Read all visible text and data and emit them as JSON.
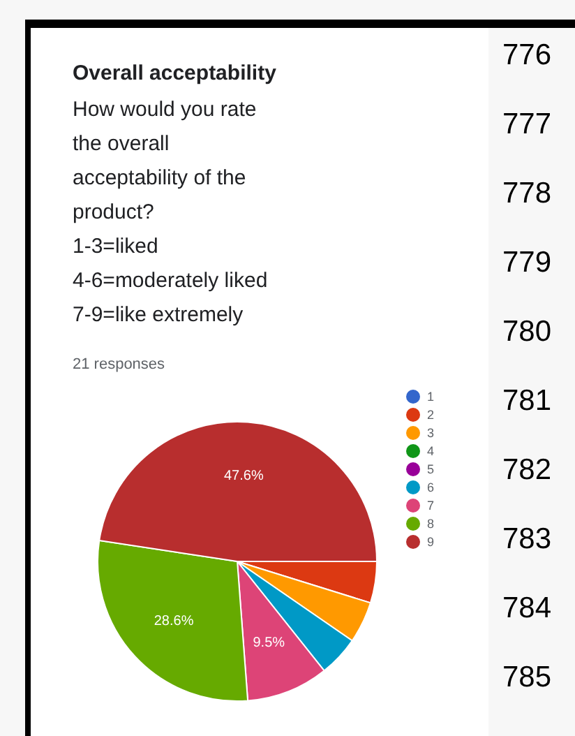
{
  "chart_data": {
    "type": "pie",
    "title": "Overall acceptability",
    "subtitle": "How would you rate\nthe overall\nacceptability of the\nproduct?\n1-3=liked\n4-6=moderately liked\n7-9=like extremely",
    "annotations": [
      "21 responses",
      "776",
      "777",
      "778",
      "779",
      "780",
      "781",
      "782",
      "783",
      "784",
      "785"
    ],
    "categories": [
      "1",
      "2",
      "3",
      "4",
      "5",
      "6",
      "7",
      "8",
      "9"
    ],
    "values": [
      0,
      4.8,
      4.8,
      0,
      0,
      4.7,
      9.5,
      28.6,
      47.6
    ],
    "value_labels": [
      null,
      null,
      null,
      null,
      null,
      null,
      "9.5%",
      "28.6%",
      "47.6%"
    ],
    "colors": [
      "#3366cc",
      "#dc3912",
      "#ff9900",
      "#109618",
      "#990099",
      "#0099c6",
      "#dd4477",
      "#66aa00",
      "#b82e2e"
    ],
    "legend": "right"
  }
}
